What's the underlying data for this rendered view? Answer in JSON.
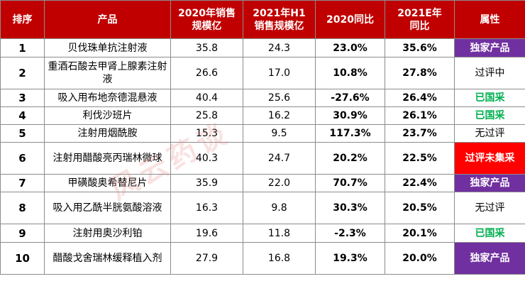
{
  "headers": [
    "排序",
    "产品",
    "2020年销售规模亿",
    "2021年H1销售规模亿",
    "2020同比",
    "2021E年同比",
    "属性"
  ],
  "header_lines": [
    [
      "排序"
    ],
    [
      "产品"
    ],
    [
      "2020年销售",
      "规模亿"
    ],
    [
      "2021年H1",
      "销售规模亿"
    ],
    [
      "2020同比"
    ],
    [
      "2021E年",
      "同比"
    ],
    [
      "属性"
    ]
  ],
  "rows": [
    {
      "rank": "1",
      "product": "贝伐珠单抗注射液",
      "sales2020": "35.8",
      "sales2021h1": "24.3",
      "yoy2020": "23.0%",
      "yoy2021e": "35.6%",
      "attr": "独家产品",
      "attr_style": "purple"
    },
    {
      "rank": "2",
      "product": "重酒石酸去甲肾上腺素注射液",
      "sales2020": "26.6",
      "sales2021h1": "17.0",
      "yoy2020": "10.8%",
      "yoy2021e": "27.8%",
      "attr": "过评中",
      "attr_style": "plain"
    },
    {
      "rank": "3",
      "product": "吸入用布地奈德混悬液",
      "sales2020": "40.4",
      "sales2021h1": "25.6",
      "yoy2020": "-27.6%",
      "yoy2021e": "26.4%",
      "attr": "已国采",
      "attr_style": "green"
    },
    {
      "rank": "4",
      "product": "利伐沙班片",
      "sales2020": "25.8",
      "sales2021h1": "16.2",
      "yoy2020": "30.9%",
      "yoy2021e": "26.1%",
      "attr": "已国采",
      "attr_style": "green"
    },
    {
      "rank": "5",
      "product": "注射用烟酰胺",
      "sales2020": "15.3",
      "sales2021h1": "9.5",
      "yoy2020": "117.3%",
      "yoy2021e": "23.7%",
      "attr": "无过评",
      "attr_style": "plain"
    },
    {
      "rank": "6",
      "product": "注射用醋酸亮丙瑞林微球",
      "sales2020": "40.3",
      "sales2021h1": "24.7",
      "yoy2020": "20.2%",
      "yoy2021e": "22.5%",
      "attr": "过评未集采",
      "attr_style": "red"
    },
    {
      "rank": "7",
      "product": "甲磺酸奥希替尼片",
      "sales2020": "35.9",
      "sales2021h1": "22.0",
      "yoy2020": "70.7%",
      "yoy2021e": "22.4%",
      "attr": "独家产品",
      "attr_style": "purple"
    },
    {
      "rank": "8",
      "product": "吸入用乙酰半胱氨酸溶液",
      "sales2020": "16.3",
      "sales2021h1": "9.8",
      "yoy2020": "30.3%",
      "yoy2021e": "20.5%",
      "attr": "无过评",
      "attr_style": "plain"
    },
    {
      "rank": "9",
      "product": "注射用奥沙利铂",
      "sales2020": "19.6",
      "sales2021h1": "11.8",
      "yoy2020": "-2.3%",
      "yoy2021e": "20.1%",
      "attr": "已国采",
      "attr_style": "green"
    },
    {
      "rank": "10",
      "product": "醋酸戈舍瑞林缓释植入剂",
      "sales2020": "27.9",
      "sales2021h1": "16.8",
      "yoy2020": "19.3%",
      "yoy2021e": "20.0%",
      "attr": "独家产品",
      "attr_style": "purple"
    }
  ],
  "colors": {
    "header_bg": "#c00000",
    "purple": "#7030a0",
    "red": "#ff0000",
    "green": "#00b050"
  },
  "watermark": "风云药谈"
}
